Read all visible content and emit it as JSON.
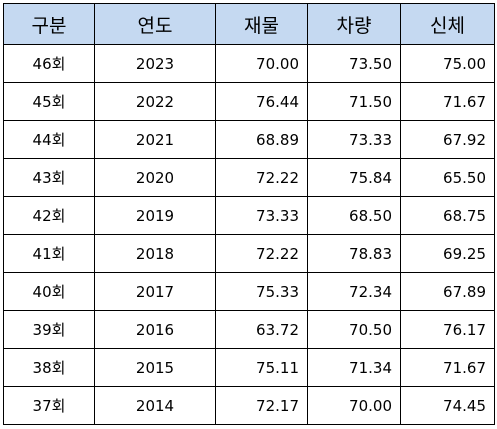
{
  "table": {
    "header": [
      "구분",
      "연도",
      "재물",
      "차량",
      "신체"
    ],
    "rows": [
      [
        "46회",
        "2023",
        "70.00",
        "73.50",
        "75.00"
      ],
      [
        "45회",
        "2022",
        "76.44",
        "71.50",
        "71.67"
      ],
      [
        "44회",
        "2021",
        "68.89",
        "73.33",
        "67.92"
      ],
      [
        "43회",
        "2020",
        "72.22",
        "75.84",
        "65.50"
      ],
      [
        "42회",
        "2019",
        "73.33",
        "68.50",
        "68.75"
      ],
      [
        "41회",
        "2018",
        "72.22",
        "78.83",
        "69.25"
      ],
      [
        "40회",
        "2017",
        "75.33",
        "72.34",
        "67.89"
      ],
      [
        "39회",
        "2016",
        "63.72",
        "70.50",
        "76.17"
      ],
      [
        "38회",
        "2015",
        "75.11",
        "71.34",
        "71.67"
      ],
      [
        "37회",
        "2014",
        "72.17",
        "70.00",
        "74.45"
      ]
    ]
  }
}
